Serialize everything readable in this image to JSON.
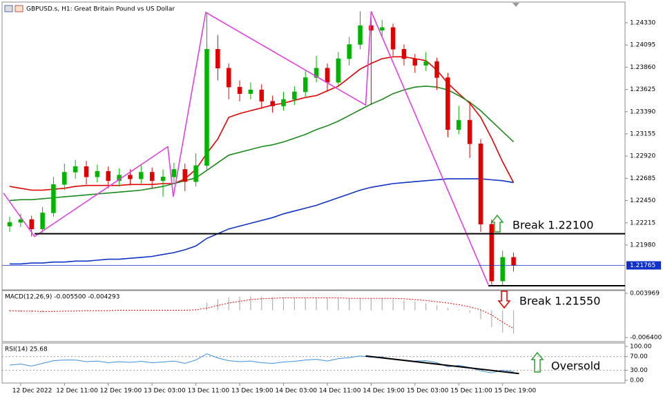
{
  "chart_data": [
    {
      "type": "candlestick",
      "title": "GBPUSD.s, H1:  Great Britain Pound vs US Dollar",
      "categories": [
        null,
        "12 Dec 2022",
        null,
        null,
        null,
        "12 Dec 11:00",
        null,
        null,
        null,
        "12 Dec 19:00",
        null,
        null,
        null,
        "13 Dec 03:00",
        null,
        null,
        null,
        "13 Dec 11:00",
        null,
        null,
        null,
        "13 Dec 19:00",
        null,
        null,
        null,
        "14 Dec 03:00",
        null,
        null,
        null,
        "14 Dec 11:00",
        null,
        null,
        null,
        "14 Dec 19:00",
        null,
        null,
        null,
        "15 Dec 03:00",
        null,
        null,
        null,
        "15 Dec 11:00",
        null,
        null,
        null,
        "15 Dec 19:00",
        null
      ],
      "open": [
        1.2218,
        1.2222,
        1.2225,
        1.2215,
        1.2232,
        1.2262,
        1.2275,
        1.2281,
        1.227,
        1.2276,
        1.2266,
        1.2272,
        1.2268,
        1.2275,
        1.2266,
        1.227,
        1.2278,
        1.2265,
        1.2282,
        1.2405,
        1.2385,
        1.2365,
        1.2358,
        1.2362,
        1.235,
        1.2345,
        1.2352,
        1.236,
        1.2375,
        1.2385,
        1.237,
        1.2395,
        1.241,
        1.243,
        1.2425,
        1.2428,
        1.2405,
        1.2395,
        1.2388,
        1.2392,
        1.2375,
        1.232,
        1.233,
        1.2305,
        1.222,
        1.216,
        1.2185
      ],
      "high": [
        1.2228,
        1.2231,
        1.2229,
        1.2238,
        1.227,
        1.2284,
        1.2288,
        1.2287,
        1.2283,
        1.2281,
        1.2279,
        1.2278,
        1.2283,
        1.228,
        1.2278,
        1.2285,
        1.2284,
        1.2295,
        1.2444,
        1.242,
        1.239,
        1.2372,
        1.237,
        1.2368,
        1.2356,
        1.236,
        1.2366,
        1.2382,
        1.2398,
        1.239,
        1.2402,
        1.2418,
        1.2445,
        1.2438,
        1.2436,
        1.2432,
        1.241,
        1.24,
        1.2402,
        1.2396,
        1.238,
        1.2345,
        1.235,
        1.231,
        1.2225,
        1.2192,
        1.219
      ],
      "low": [
        1.2212,
        1.2217,
        1.2207,
        1.2211,
        1.2228,
        1.2256,
        1.2268,
        1.2262,
        1.2264,
        1.2258,
        1.226,
        1.2261,
        1.2263,
        1.2258,
        1.2249,
        1.2264,
        1.2255,
        1.226,
        1.2278,
        1.2372,
        1.2352,
        1.235,
        1.2352,
        1.2342,
        1.2338,
        1.234,
        1.2346,
        1.2355,
        1.237,
        1.236,
        1.2366,
        1.2388,
        1.2405,
        1.2346,
        1.2418,
        1.2398,
        1.2388,
        1.238,
        1.2382,
        1.2362,
        1.2312,
        1.2315,
        1.229,
        1.2212,
        1.2156,
        1.2155,
        1.217
      ],
      "close": [
        1.2222,
        1.2225,
        1.2215,
        1.2232,
        1.2262,
        1.2275,
        1.2281,
        1.227,
        1.2276,
        1.2266,
        1.2272,
        1.2268,
        1.2275,
        1.2266,
        1.227,
        1.2278,
        1.2265,
        1.2282,
        1.2405,
        1.2385,
        1.2365,
        1.2358,
        1.2362,
        1.235,
        1.2345,
        1.2352,
        1.236,
        1.2375,
        1.2385,
        1.237,
        1.2395,
        1.241,
        1.243,
        1.2425,
        1.2428,
        1.2405,
        1.2395,
        1.2388,
        1.2392,
        1.2375,
        1.232,
        1.233,
        1.2305,
        1.222,
        1.216,
        1.2185,
        1.21765
      ],
      "up_color": "#00b400",
      "down_color": "#e00000",
      "series": [
        {
          "color": "#e00000",
          "values": [
            1.226,
            1.2258,
            1.2256,
            1.2256,
            1.2257,
            1.2258,
            1.226,
            1.2261,
            1.2261,
            1.2261,
            1.2261,
            1.2262,
            1.2262,
            1.2262,
            1.2263,
            1.2263,
            1.2268,
            1.2278,
            1.2295,
            1.231,
            1.2333,
            1.2337,
            1.234,
            1.2343,
            1.2346,
            1.2348,
            1.2351,
            1.2354,
            1.2356,
            1.2361,
            1.2366,
            1.2375,
            1.2384,
            1.239,
            1.2395,
            1.2397,
            1.2397,
            1.2395,
            1.2393,
            1.2383,
            1.2369,
            1.2358,
            1.2348,
            1.2333,
            1.2311,
            1.2286,
            1.2264
          ]
        },
        {
          "color": "#1a8a1a",
          "values": [
            1.2245,
            1.2246,
            1.2246,
            1.2247,
            1.2248,
            1.2249,
            1.225,
            1.2251,
            1.2252,
            1.2253,
            1.2254,
            1.2255,
            1.2256,
            1.2258,
            1.226,
            1.2263,
            1.2266,
            1.2269,
            1.2277,
            1.2285,
            1.2293,
            1.2296,
            1.2299,
            1.2302,
            1.2304,
            1.2307,
            1.2311,
            1.2315,
            1.232,
            1.2324,
            1.2329,
            1.2335,
            1.2341,
            1.2347,
            1.2352,
            1.2358,
            1.2362,
            1.2365,
            1.2366,
            1.2365,
            1.2362,
            1.2356,
            1.2349,
            1.234,
            1.2329,
            1.2318,
            1.2307
          ]
        },
        {
          "color": "#1030c8",
          "values": [
            1.2178,
            1.2178,
            1.2179,
            1.2179,
            1.218,
            1.218,
            1.2181,
            1.2181,
            1.2182,
            1.2183,
            1.2183,
            1.2184,
            1.2185,
            1.2186,
            1.2188,
            1.219,
            1.2193,
            1.2197,
            1.2205,
            1.221,
            1.2215,
            1.2218,
            1.2221,
            1.2224,
            1.2227,
            1.2231,
            1.2234,
            1.2237,
            1.224,
            1.2244,
            1.2248,
            1.2252,
            1.2256,
            1.2259,
            1.2261,
            1.2263,
            1.2264,
            1.2265,
            1.2266,
            1.2267,
            1.2268,
            1.2268,
            1.2268,
            1.2268,
            1.2267,
            1.2266,
            1.2264
          ]
        }
      ],
      "zigzag": {
        "color": "#e040e0",
        "x": [
          -0.57,
          2.27,
          14.44,
          14.94,
          17.9,
          32.5,
          33.0,
          43.7
        ],
        "values": [
          1.2253,
          1.2207,
          1.2302,
          1.2249,
          1.2444,
          1.2346,
          1.2445,
          1.2156
        ]
      },
      "ylim": [
        1.21506,
        1.24534
      ],
      "yticks": [
        {
          "value": 1.2433,
          "label": "1.24330"
        },
        1.24095,
        {
          "value": 1.2386,
          "label": "1.23860"
        },
        1.23625,
        {
          "value": 1.2339,
          "label": "1.23390"
        },
        1.23155,
        {
          "value": 1.2292,
          "label": "1.22920"
        },
        1.22685,
        {
          "value": 1.2245,
          "label": "1.22450"
        },
        1.22215,
        {
          "value": 1.2198,
          "label": "1.21980"
        }
      ],
      "levels": [
        {
          "value": 1.221,
          "label": "Break 1.22100"
        },
        {
          "value": 1.2155,
          "label": "Break 1.21550"
        }
      ],
      "last_price": {
        "value": 1.21765,
        "label": "1.21765"
      }
    },
    {
      "type": "macd",
      "title": "MACD(12,26,9) -0.005500 -0.004293",
      "values": [
        -0.0003,
        -0.0004,
        -0.0005,
        -0.0004,
        -0.0002,
        0.0,
        0.0001,
        0.0001,
        0.0001,
        0.0,
        0.0,
        0.0,
        0.0001,
        0.0,
        0.0,
        0.0001,
        0.0,
        0.0003,
        0.0018,
        0.0026,
        0.003,
        0.0032,
        0.0033,
        0.0032,
        0.0031,
        0.003,
        0.0029,
        0.0029,
        0.0029,
        0.0028,
        0.0028,
        0.0028,
        0.0029,
        0.0029,
        0.0028,
        0.0026,
        0.0023,
        0.002,
        0.0016,
        0.0012,
        0.0006,
        0.0002,
        -0.0006,
        -0.0021,
        -0.004,
        -0.0052,
        -0.0055
      ],
      "color": "#b0b0b0",
      "signal": {
        "color": "#e00000",
        "values": [
          -0.0001,
          -0.0002,
          -0.0002,
          -0.0003,
          -0.0003,
          -0.0002,
          -0.0002,
          -0.0001,
          -0.0001,
          -0.0001,
          0.0,
          0.0,
          0.0,
          0.0,
          0.0,
          0.0,
          0.0,
          0.0001,
          0.0005,
          0.0011,
          0.0017,
          0.0021,
          0.0025,
          0.0027,
          0.0028,
          0.0029,
          0.0029,
          0.0029,
          0.0029,
          0.0029,
          0.0029,
          0.0028,
          0.0028,
          0.0028,
          0.0028,
          0.0028,
          0.0027,
          0.0025,
          0.0023,
          0.002,
          0.0017,
          0.0013,
          0.0008,
          0.0001,
          -0.0011,
          -0.0028,
          -0.004293
        ]
      },
      "ylim": [
        -0.00737,
        0.00462
      ],
      "yticks": [
        0.003969,
        {
          "value": -0.0064,
          "label": "-0.006400"
        }
      ]
    },
    {
      "type": "line",
      "title": "RSI(14) 25.68",
      "color": "#3c8fdc",
      "values": [
        45,
        48,
        42,
        50,
        58,
        60,
        60,
        55,
        57,
        52,
        55,
        53,
        56,
        52,
        54,
        57,
        50,
        60,
        78,
        66,
        58,
        55,
        57,
        52,
        50,
        54,
        56,
        60,
        62,
        57,
        64,
        67,
        72,
        68,
        69,
        62,
        59,
        57,
        58,
        52,
        40,
        44,
        38,
        28,
        22,
        30,
        25.68
      ],
      "trendline": {
        "color": "#000000",
        "x": [
          32.5,
          46.5
        ],
        "values": [
          72,
          20
        ]
      },
      "ylim": [
        -8,
        110
      ],
      "yticks": [
        {
          "value": 100,
          "label": "100.00"
        },
        {
          "value": 70,
          "label": "70.00"
        },
        {
          "value": 30,
          "label": "30.00"
        },
        {
          "value": 0,
          "label": "0.00"
        }
      ],
      "grid_levels": [
        70,
        30
      ],
      "annotations": [
        "Oversold"
      ]
    }
  ]
}
